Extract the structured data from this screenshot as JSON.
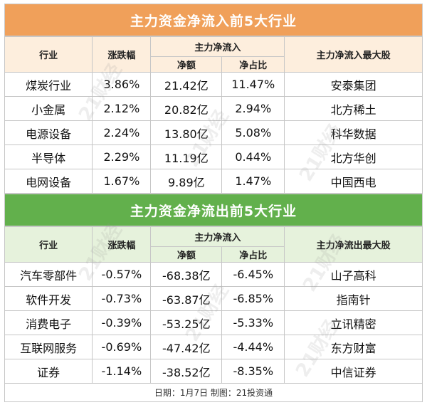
{
  "inflow": {
    "title": "主力资金净流入前5大行业",
    "headers": {
      "industry": "行业",
      "change": "涨跌幅",
      "net_group": "主力净流入",
      "net_amount": "净额",
      "net_ratio": "净占比",
      "top_stock": "主力净流入最大股"
    },
    "rows": [
      {
        "industry": "煤炭行业",
        "change": "3.86%",
        "net_amount": "21.42亿",
        "net_ratio": "11.47%",
        "top_stock": "安泰集团"
      },
      {
        "industry": "小金属",
        "change": "2.12%",
        "net_amount": "20.82亿",
        "net_ratio": "2.94%",
        "top_stock": "北方稀土"
      },
      {
        "industry": "电源设备",
        "change": "2.24%",
        "net_amount": "13.80亿",
        "net_ratio": "5.08%",
        "top_stock": "科华数据"
      },
      {
        "industry": "半导体",
        "change": "2.29%",
        "net_amount": "11.19亿",
        "net_ratio": "0.44%",
        "top_stock": "北方华创"
      },
      {
        "industry": "电网设备",
        "change": "1.67%",
        "net_amount": "9.89亿",
        "net_ratio": "1.47%",
        "top_stock": "中国西电"
      }
    ]
  },
  "outflow": {
    "title": "主力资金净流出前5大行业",
    "headers": {
      "industry": "行业",
      "change": "涨跌幅",
      "net_group": "主力净流入",
      "net_amount": "净额",
      "net_ratio": "净占比",
      "top_stock": "主力净流出最大股"
    },
    "rows": [
      {
        "industry": "汽车零部件",
        "change": "-0.57%",
        "net_amount": "-68.38亿",
        "net_ratio": "-6.45%",
        "top_stock": "山子高科"
      },
      {
        "industry": "软件开发",
        "change": "-0.73%",
        "net_amount": "-63.87亿",
        "net_ratio": "-6.85%",
        "top_stock": "指南针"
      },
      {
        "industry": "消费电子",
        "change": "-0.39%",
        "net_amount": "-53.25亿",
        "net_ratio": "-5.33%",
        "top_stock": "立讯精密"
      },
      {
        "industry": "互联网服务",
        "change": "-0.69%",
        "net_amount": "-47.42亿",
        "net_ratio": "-4.44%",
        "top_stock": "东方财富"
      },
      {
        "industry": "证券",
        "change": "-1.14%",
        "net_amount": "-38.52亿",
        "net_ratio": "-8.35%",
        "top_stock": "中信证券"
      }
    ]
  },
  "footer": "日期：1月7日 制图：21投资通",
  "watermark": "21财经",
  "colors": {
    "inflow_banner": "#f0a05a",
    "outflow_banner": "#62b04c",
    "inflow_header_bg": "#fdeedd",
    "outflow_header_bg": "#e6f2dc"
  }
}
